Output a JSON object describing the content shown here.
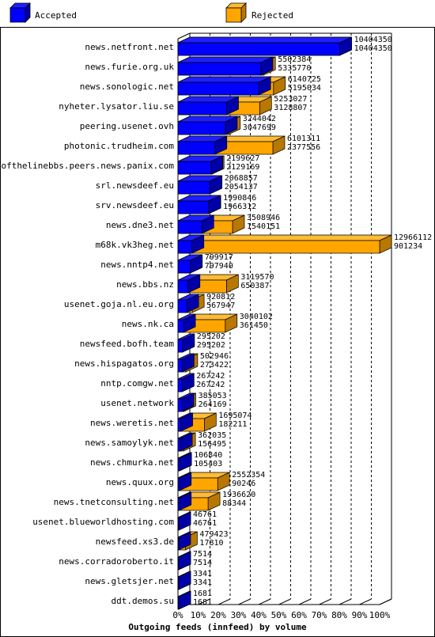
{
  "legend": {
    "accepted_label": "Accepted",
    "rejected_label": "Rejected"
  },
  "colors": {
    "accepted_face": "#0000ff",
    "accepted_top": "#1f1fff",
    "accepted_side": "#0000a8",
    "rejected_face": "#ffa500",
    "rejected_top": "#ffbb33",
    "rejected_side": "#b87800",
    "grid": "#000000",
    "frame": "#000000"
  },
  "chart_data": {
    "type": "bar",
    "orientation": "horizontal",
    "stacking": "overlapped",
    "title": "Outgoing feeds (innfeed) by volume",
    "xlabel": "",
    "ylabel": "",
    "x_ticks": [
      "0%",
      "10%",
      "20%",
      "30%",
      "40%",
      "50%",
      "60%",
      "70%",
      "80%",
      "90%",
      "100%"
    ],
    "x_max": 12966112,
    "categories": [
      "news.netfront.net",
      "news.furie.org.uk",
      "news.sonologic.net",
      "nyheter.lysator.liu.se",
      "peering.usenet.ovh",
      "photonic.trudheim.com",
      "endofthelinebbs.peers.news.panix.com",
      "srl.newsdeef.eu",
      "srv.newsdeef.eu",
      "news.dne3.net",
      "m68k.vk3heg.net",
      "news.nntp4.net",
      "news.bbs.nz",
      "usenet.goja.nl.eu.org",
      "news.nk.ca",
      "newsfeed.bofh.team",
      "news.hispagatos.org",
      "nntp.comgw.net",
      "usenet.network",
      "news.weretis.net",
      "news.samoylyk.net",
      "news.chmurka.net",
      "news.quux.org",
      "news.tnetconsulting.net",
      "usenet.blueworldhosting.com",
      "newsfeed.xs3.de",
      "news.corradoroberto.it",
      "news.gletsjer.net",
      "ddt.demos.su"
    ],
    "series": [
      {
        "name": "Rejected",
        "values": [
          10404350,
          5502384,
          6140725,
          5253027,
          3244042,
          6101311,
          2199627,
          2068857,
          1990846,
          3508946,
          12966112,
          799917,
          3119570,
          920812,
          3040102,
          295202,
          502946,
          267242,
          385053,
          1695074,
          362035,
          106840,
          2552354,
          1936620,
          46761,
          479423,
          7514,
          3341,
          1681
        ]
      },
      {
        "name": "Accepted",
        "values": [
          10404350,
          5335770,
          5195034,
          3128807,
          3047699,
          2377556,
          2129169,
          2054137,
          1966312,
          1540151,
          901234,
          797940,
          650387,
          567947,
          361450,
          295202,
          273422,
          267242,
          264169,
          182211,
          156495,
          105403,
          90246,
          88344,
          46761,
          17810,
          7514,
          3341,
          1681
        ]
      }
    ]
  }
}
